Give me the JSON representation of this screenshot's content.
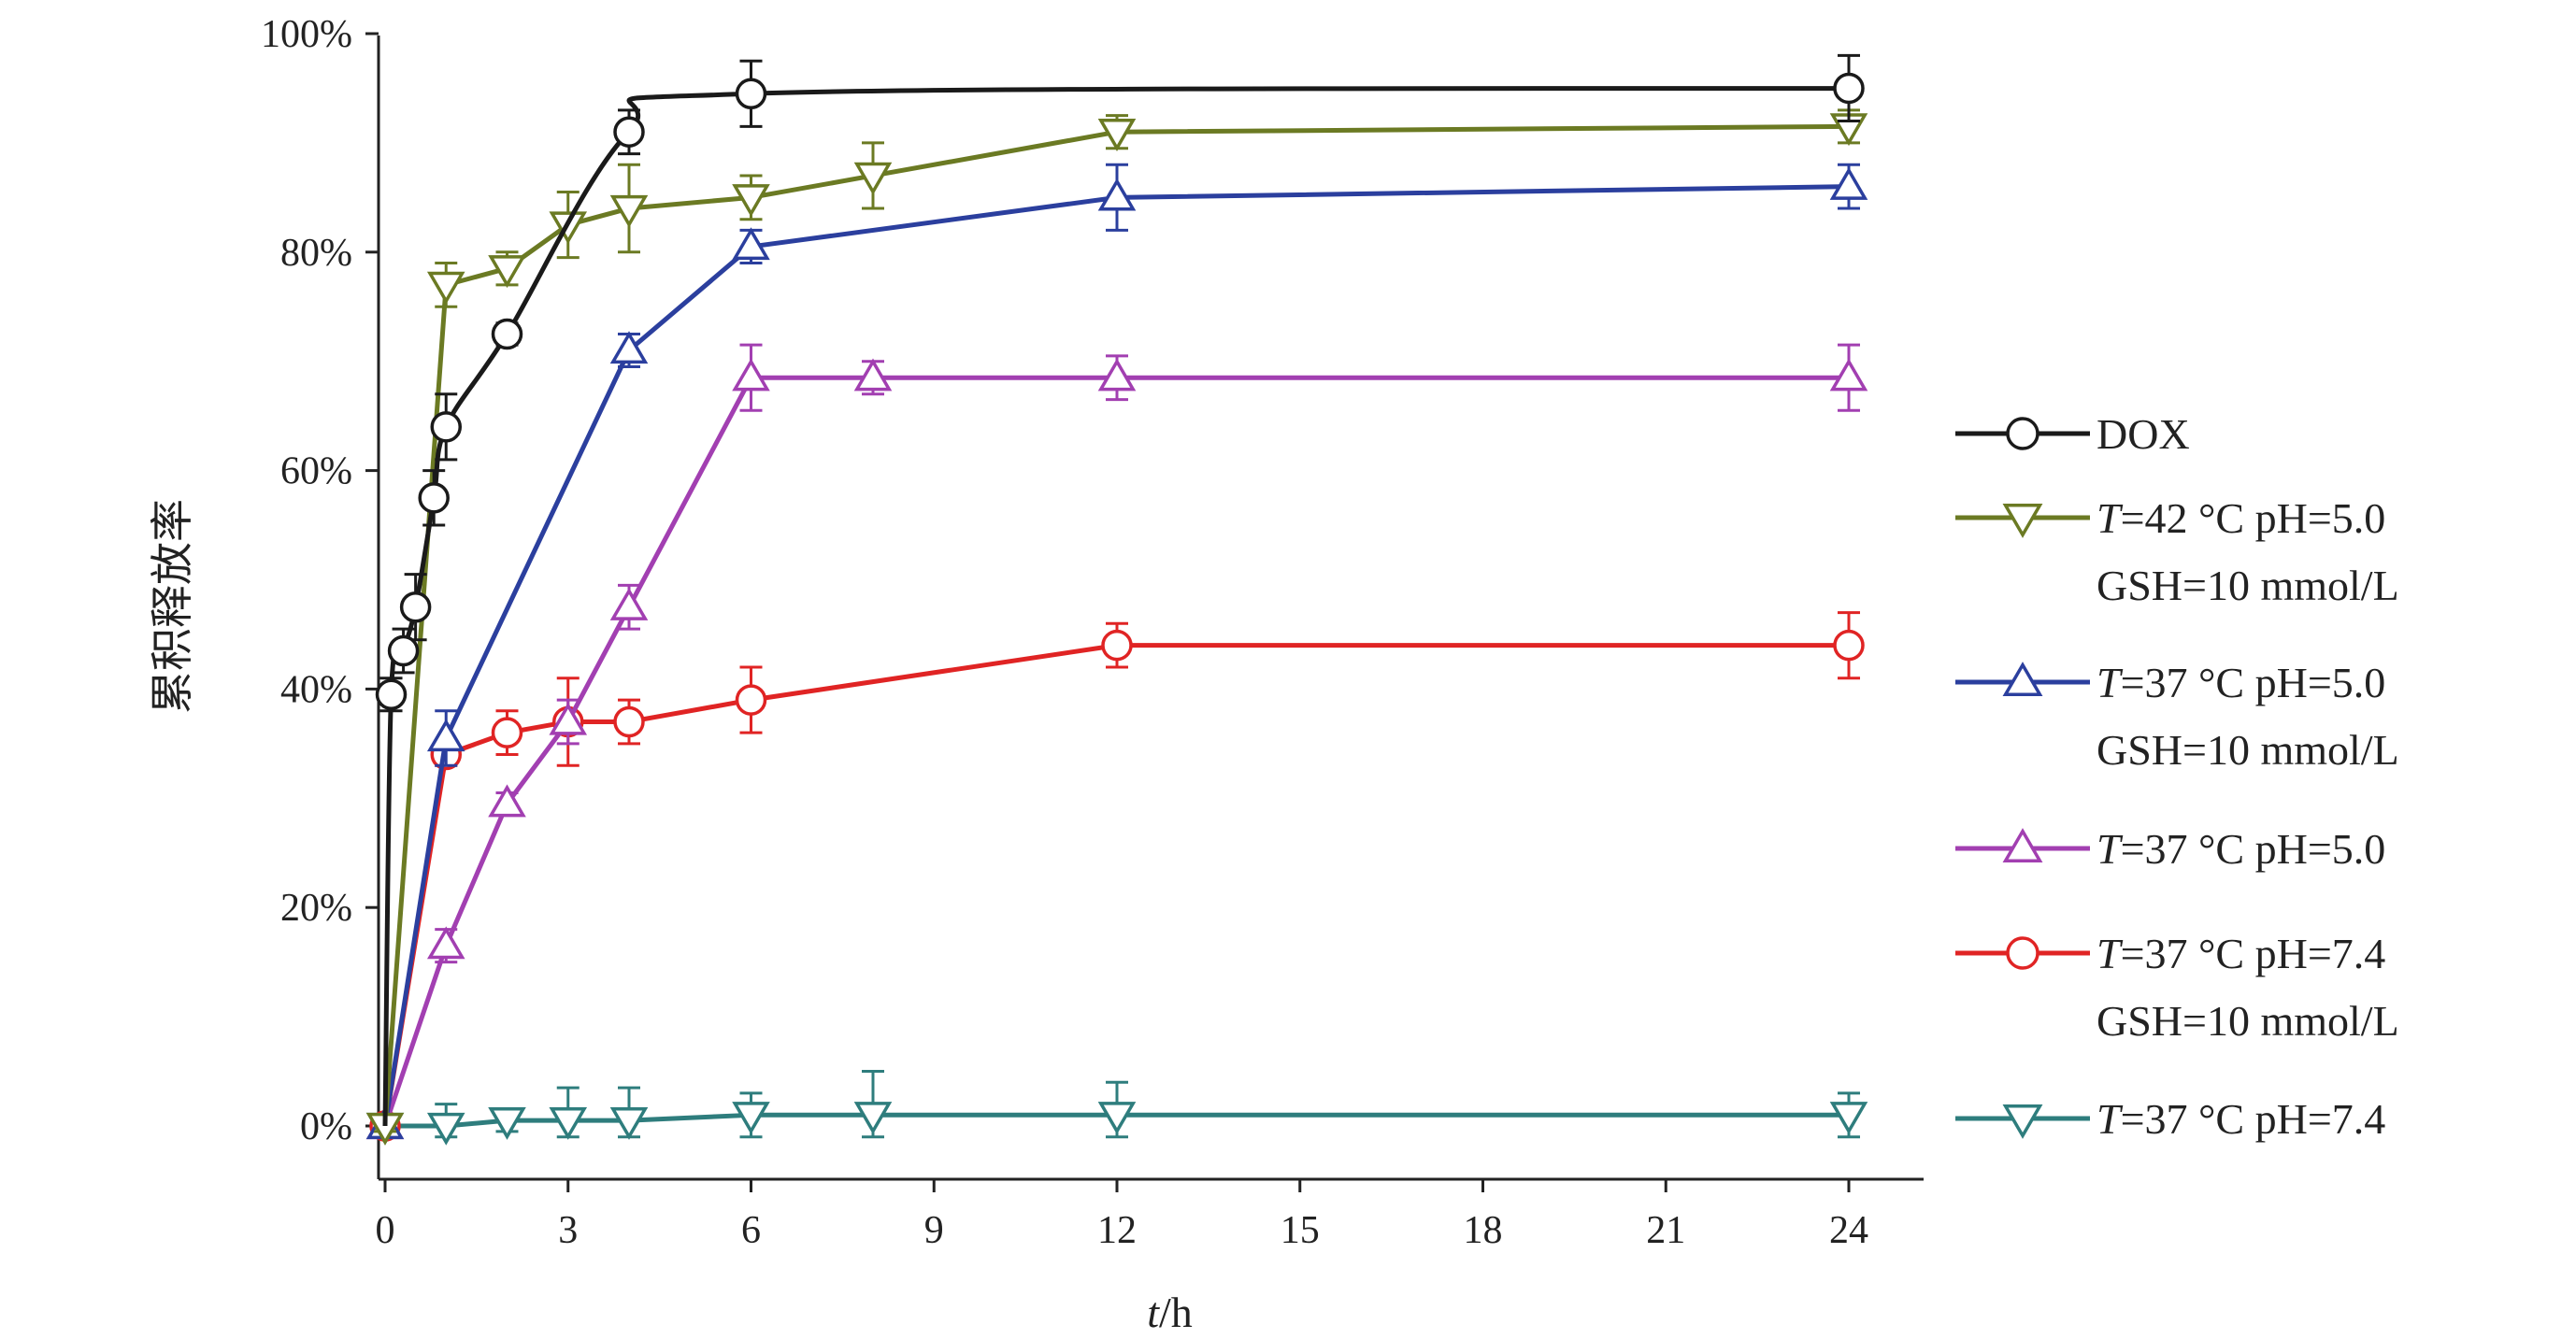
{
  "chart_data": {
    "type": "line",
    "title": "",
    "xlabel_italic": "t",
    "xlabel_unit": "/h",
    "ylabel": "累积释放率",
    "xlim": [
      0,
      24
    ],
    "ylim": [
      0,
      100
    ],
    "x_ticks": [
      0,
      3,
      6,
      9,
      12,
      15,
      18,
      21,
      24
    ],
    "y_ticks": [
      0,
      20,
      40,
      60,
      80,
      100
    ],
    "y_tick_labels": [
      "0%",
      "20%",
      "40%",
      "60%",
      "80%",
      "100%"
    ],
    "grid": false,
    "legend_position": "right",
    "series": [
      {
        "key": "dox",
        "name": "DOX",
        "legend": {
          "italic": "",
          "rest": "DOX",
          "line2": ""
        },
        "color": "#1a1a1a",
        "marker": "circle",
        "smooth": true,
        "x": [
          0.1,
          0.3,
          0.5,
          0.8,
          1,
          2,
          4,
          6,
          24
        ],
        "y": [
          39.5,
          43.5,
          47.5,
          57.5,
          64,
          72.5,
          91,
          94.5,
          95
        ],
        "err": [
          1.5,
          2,
          3,
          2.5,
          3,
          1,
          2,
          3,
          3
        ]
      },
      {
        "key": "t42_ph50_gsh",
        "name": "T=42 °C pH=5.0 GSH=10 mmol/L",
        "legend": {
          "italic": "T",
          "rest": "=42 °C  pH=5.0",
          "line2": "GSH=10 mmol/L"
        },
        "color": "#6b7a23",
        "marker": "triangle-down",
        "smooth": false,
        "x": [
          0,
          1,
          2,
          3,
          4,
          6,
          8,
          12,
          24
        ],
        "y": [
          0,
          77,
          78.5,
          82.5,
          84,
          85,
          87,
          91,
          91.5
        ],
        "err": [
          0.5,
          2,
          1.5,
          3,
          4,
          2,
          3,
          1.5,
          1.5
        ]
      },
      {
        "key": "t37_ph50_gsh",
        "name": "T=37 °C pH=5.0 GSH=10 mmol/L",
        "legend": {
          "italic": "T",
          "rest": "=37 °C  pH=5.0",
          "line2": "GSH=10 mmol/L"
        },
        "color": "#2b3f9e",
        "marker": "triangle-up",
        "smooth": false,
        "x": [
          0,
          1,
          4,
          6,
          12,
          24
        ],
        "y": [
          0,
          35.5,
          71,
          80.5,
          85,
          86
        ],
        "err": [
          0.5,
          2.5,
          1.5,
          1.5,
          3,
          2
        ]
      },
      {
        "key": "t37_ph50",
        "name": "T=37 °C pH=5.0",
        "legend": {
          "italic": "T",
          "rest": "=37 °C  pH=5.0",
          "line2": ""
        },
        "color": "#a23fb1",
        "marker": "triangle-up",
        "smooth": false,
        "x": [
          0,
          1,
          2,
          3,
          4,
          6,
          8,
          12,
          24
        ],
        "y": [
          0,
          16.5,
          29.5,
          37,
          47.5,
          68.5,
          68.5,
          68.5,
          68.5
        ],
        "err": [
          0.5,
          1.5,
          1,
          2,
          2,
          3,
          1.5,
          2,
          3
        ]
      },
      {
        "key": "t37_ph74_gsh",
        "name": "T=37 °C pH=7.4 GSH=10 mmol/L",
        "legend": {
          "italic": "T",
          "rest": "=37 °C  pH=7.4",
          "line2": "GSH=10 mmol/L"
        },
        "color": "#e02424",
        "marker": "circle",
        "smooth": false,
        "x": [
          0,
          1,
          2,
          3,
          4,
          6,
          12,
          24
        ],
        "y": [
          0,
          34,
          36,
          37,
          37,
          39,
          44,
          44
        ],
        "err": [
          0.5,
          1,
          2,
          4,
          2,
          3,
          2,
          3
        ]
      },
      {
        "key": "t37_ph74",
        "name": "T=37 °C pH=7.4",
        "legend": {
          "italic": "T",
          "rest": "=37 °C  pH=7.4",
          "line2": ""
        },
        "color": "#2e7d7d",
        "marker": "triangle-down",
        "smooth": false,
        "x": [
          0,
          1,
          2,
          3,
          4,
          6,
          8,
          12,
          24
        ],
        "y": [
          0,
          0,
          0.5,
          0.5,
          0.5,
          1,
          1,
          1,
          1
        ],
        "err": [
          0.3,
          2,
          1,
          3,
          3,
          2,
          4,
          3,
          2
        ]
      }
    ]
  }
}
